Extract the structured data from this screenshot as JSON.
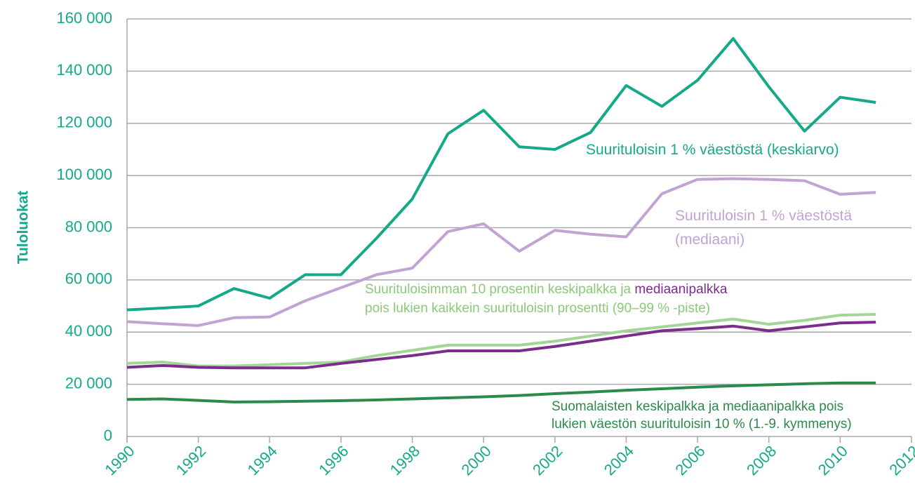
{
  "chart_data": {
    "type": "line",
    "ylabel": "Tuloluokat",
    "x": [
      1990,
      1991,
      1992,
      1993,
      1994,
      1995,
      1996,
      1997,
      1998,
      1999,
      2000,
      2001,
      2002,
      2003,
      2004,
      2005,
      2006,
      2007,
      2008,
      2009,
      2010,
      2011
    ],
    "series": [
      {
        "color": "#15a98a",
        "values": [
          48500,
          49200,
          50000,
          56700,
          53000,
          62000,
          62000,
          76000,
          91000,
          116000,
          125000,
          111000,
          110000,
          116500,
          134500,
          126500,
          136500,
          152500,
          134000,
          117000,
          130000,
          128000
        ]
      },
      {
        "color": "#c2a4d2",
        "values": [
          44000,
          43200,
          42500,
          45500,
          45800,
          52000,
          57000,
          62000,
          64500,
          78500,
          81500,
          71000,
          79000,
          77500,
          76500,
          93000,
          98500,
          98800,
          98500,
          98000,
          92800,
          93500
        ]
      },
      {
        "color": "#a3d596",
        "values": [
          28000,
          28500,
          27000,
          27000,
          27500,
          28000,
          28500,
          31000,
          33000,
          35000,
          35000,
          35000,
          36500,
          38500,
          40500,
          42000,
          43500,
          45000,
          43000,
          44500,
          46500,
          46800
        ]
      },
      {
        "color": "#7b2d8b",
        "values": [
          26500,
          27200,
          26500,
          26300,
          26300,
          26300,
          28000,
          29500,
          31000,
          32800,
          32800,
          32800,
          34500,
          36500,
          38500,
          40500,
          41300,
          42300,
          40500,
          42000,
          43500,
          43800
        ]
      },
      {
        "color": "#2b8a4c",
        "values": [
          14200,
          14400,
          13800,
          13200,
          13300,
          13500,
          13700,
          14000,
          14400,
          14800,
          15200,
          15700,
          16400,
          17000,
          17700,
          18300,
          18900,
          19400,
          19800,
          20200,
          20500,
          20500
        ]
      }
    ],
    "annotations": [
      {
        "lines": [
          [
            {
              "text": "Suurituloisin 1 % väestöstä (keskiarvo)",
              "color": "#15a98a"
            }
          ]
        ]
      },
      {
        "lines": [
          [
            {
              "text": "Suurituloisin 1 % väestöstä",
              "color": "#c2a4d2"
            }
          ],
          [
            {
              "text": "(mediaani)",
              "color": "#c2a4d2"
            }
          ]
        ]
      },
      {
        "lines": [
          [
            {
              "text": "Suurituloisimman 10 prosentin keskipalkka ja ",
              "color": "#8cc87a"
            },
            {
              "text": "mediaanipalkka",
              "color": "#7b2d8b"
            }
          ],
          [
            {
              "text": "pois lukien kaikkein suurituloisin prosentti (90–99 % -piste)",
              "color": "#8cc87a"
            }
          ]
        ]
      },
      {
        "lines": [
          [
            {
              "text": "Suomalaisten keskipalkka ja mediaanipalkka pois",
              "color": "#2b8a4c"
            }
          ],
          [
            {
              "text": "lukien väestön suurituloisin 10 % (1.-9. kymmenys)",
              "color": "#2b8a4c"
            }
          ]
        ]
      }
    ],
    "xlim": [
      1990,
      2012
    ],
    "xticks": [
      1990,
      1992,
      1994,
      1996,
      1998,
      2000,
      2002,
      2004,
      2006,
      2008,
      2010,
      2012
    ],
    "ylim": [
      0,
      160000
    ],
    "yticks": [
      0,
      {
        "value": 20000,
        "label": "20 000"
      },
      {
        "value": 40000,
        "label": "40 000"
      },
      {
        "value": 60000,
        "label": "60 000"
      },
      {
        "value": 80000,
        "label": "80 000"
      },
      {
        "value": 100000,
        "label": "100 000"
      },
      {
        "value": 120000,
        "label": "120 000"
      },
      {
        "value": 140000,
        "label": "140 000"
      },
      {
        "value": 160000,
        "label": "160 000"
      }
    ],
    "grid": true,
    "axis_color": "#15a98a"
  }
}
